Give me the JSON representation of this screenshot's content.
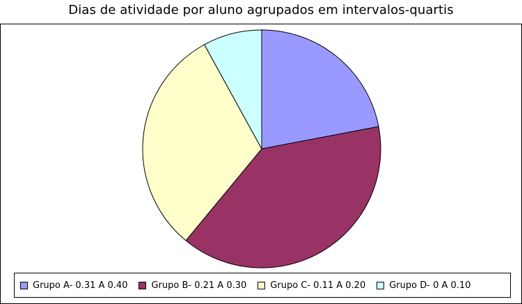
{
  "chart_data": {
    "type": "pie",
    "title": "Dias de atividade por aluno agrupados em intervalos-quartis",
    "legend_position": "bottom",
    "slices": [
      {
        "label": "Grupo A- 0.31 A 0.40",
        "value": 22,
        "color": "#9999ff"
      },
      {
        "label": "Grupo B- 0.21 A 0.30",
        "value": 39,
        "color": "#993366"
      },
      {
        "label": "Grupo C- 0.11 A 0.20",
        "value": 31,
        "color": "#ffffcc"
      },
      {
        "label": "Grupo D- 0 A 0.10",
        "value": 8,
        "color": "#ccffff"
      }
    ]
  }
}
